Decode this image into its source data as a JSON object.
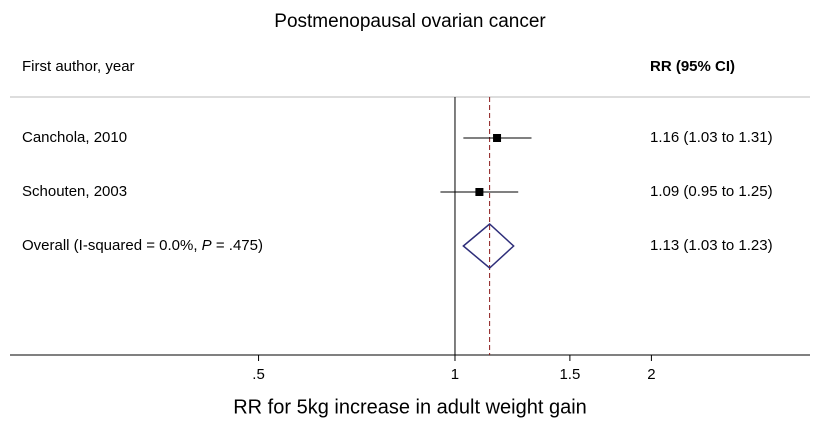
{
  "chart_data": {
    "type": "forest",
    "title": "Postmenopausal ovarian cancer",
    "label_header": "First author, year",
    "value_header": "RR (95% CI)",
    "categories": [
      "Canchola, 2010",
      "Schouten, 2003"
    ],
    "values": [
      1.16,
      1.09
    ],
    "lower": [
      1.03,
      0.95
    ],
    "upper": [
      1.31,
      1.25
    ],
    "value_labels": [
      "1.16 (1.03 to 1.31)",
      "1.09 (0.95 to 1.25)"
    ],
    "overall": {
      "label_parts": [
        "Overall  (I-squared = 0.0%, ",
        "P",
        " = .475)"
      ],
      "value": 1.13,
      "lower": 1.03,
      "upper": 1.23,
      "value_label": "1.13 (1.03 to 1.23)",
      "color": "#2e2e7a"
    },
    "color": "#000000",
    "reference_color": "#8b1a1a",
    "xlabel": "RR for 5kg increase in adult weight gain",
    "log_scale": true,
    "xlim": [
      0.208,
      3.5
    ],
    "xticks": [
      {
        "value": 0.5,
        "label": ".5"
      },
      1,
      1.5,
      2
    ]
  }
}
